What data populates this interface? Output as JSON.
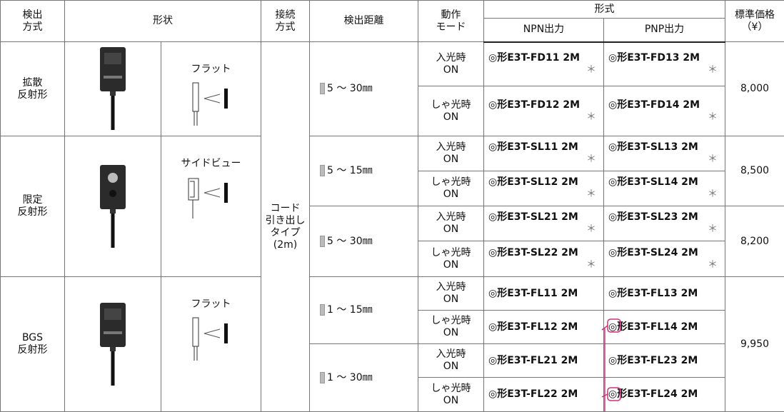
{
  "header": {
    "method": [
      "検出",
      "方式"
    ],
    "shape": "形状",
    "connection": [
      "接続",
      "方式"
    ],
    "distance": "検出距離",
    "mode": [
      "動作",
      "モード"
    ],
    "model": "形式",
    "npn": "NPN出力",
    "pnp": "PNP出力",
    "price": [
      "標準価格",
      "（¥）"
    ]
  },
  "sections": [
    {
      "method": [
        "拡散",
        "反射形"
      ],
      "shape": "フラット"
    },
    {
      "method": [
        "限定",
        "反射形"
      ],
      "shape": "サイドビュー"
    },
    {
      "method": [
        "BGS",
        "反射形"
      ],
      "shape": "フラット"
    }
  ],
  "connection": [
    "コード",
    "引き出し",
    "タイプ",
    "(2m)"
  ],
  "distances": [
    "5 ～ 30㎜",
    "5 ～ 15㎜",
    "5 ～ 30㎜",
    "1 ～ 15㎜",
    "1 ～ 30㎜"
  ],
  "prices": [
    "8,000",
    "8,500",
    "8,200",
    "9,950"
  ],
  "rows": [
    {
      "mode": [
        "入光時",
        "ON"
      ],
      "npn": "◎形E3T-FD11 2M",
      "npn_note": "＊",
      "pnp": "◎形E3T-FD13 2M",
      "pnp_note": "＊"
    },
    {
      "mode": [
        "しゃ光時",
        "ON"
      ],
      "npn": "◎形E3T-FD12 2M",
      "npn_note": "＊",
      "pnp": "◎形E3T-FD14 2M",
      "pnp_note": "＊"
    },
    {
      "mode": [
        "入光時",
        "ON"
      ],
      "npn": "◎形E3T-SL11 2M",
      "npn_note": "＊",
      "pnp": "◎形E3T-SL13 2M",
      "pnp_note": "＊"
    },
    {
      "mode": [
        "しゃ光時",
        "ON"
      ],
      "npn": "◎形E3T-SL12 2M",
      "npn_note": "＊",
      "pnp": "◎形E3T-SL14 2M",
      "pnp_note": "＊"
    },
    {
      "mode": [
        "入光時",
        "ON"
      ],
      "npn": "◎形E3T-SL21 2M",
      "npn_note": "＊",
      "pnp": "◎形E3T-SL23 2M",
      "pnp_note": "＊"
    },
    {
      "mode": [
        "しゃ光時",
        "ON"
      ],
      "npn": "◎形E3T-SL22 2M",
      "npn_note": "＊",
      "pnp": "◎形E3T-SL24 2M",
      "pnp_note": "＊"
    },
    {
      "mode": [
        "入光時",
        "ON"
      ],
      "npn": "◎形E3T-FL11 2M",
      "pnp": "◎形E3T-FL13 2M"
    },
    {
      "mode": [
        "しゃ光時",
        "ON"
      ],
      "npn": "◎形E3T-FL12 2M",
      "pnp": "◎形E3T-FL14 2M"
    },
    {
      "mode": [
        "入光時",
        "ON"
      ],
      "npn": "◎形E3T-FL21 2M",
      "pnp": "◎形E3T-FL23 2M"
    },
    {
      "mode": [
        "しゃ光時",
        "ON"
      ],
      "npn": "◎形E3T-FL22 2M",
      "pnp": "◎形E3T-FL24 2M"
    }
  ]
}
